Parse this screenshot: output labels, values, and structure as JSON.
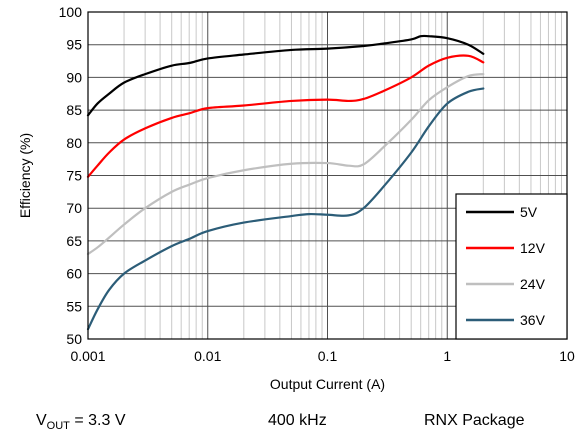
{
  "chart_data": {
    "type": "line",
    "xlabel": "Output Current (A)",
    "ylabel": "Efficiency (%)",
    "xscale": "log",
    "xlim": [
      0.001,
      10
    ],
    "ylim": [
      50,
      100
    ],
    "xticks": [
      0.001,
      0.01,
      0.1,
      1,
      10
    ],
    "xtick_labels": [
      "0.001",
      "0.01",
      "0.1",
      "1",
      "10"
    ],
    "yticks": [
      50,
      55,
      60,
      65,
      70,
      75,
      80,
      85,
      90,
      95,
      100
    ],
    "ytick_labels": [
      "50",
      "55",
      "60",
      "65",
      "70",
      "75",
      "80",
      "85",
      "90",
      "95",
      "100"
    ],
    "grid": true,
    "legend_position": "bottom-right",
    "series": [
      {
        "name": "5V",
        "color": "#000000",
        "x": [
          0.001,
          0.0012,
          0.0015,
          0.002,
          0.003,
          0.005,
          0.007,
          0.01,
          0.02,
          0.05,
          0.1,
          0.2,
          0.3,
          0.5,
          0.6,
          0.7,
          1.0,
          1.5,
          2.0
        ],
        "y": [
          84.2,
          86.0,
          87.5,
          89.2,
          90.5,
          91.8,
          92.2,
          92.9,
          93.5,
          94.2,
          94.4,
          94.8,
          95.2,
          95.8,
          96.3,
          96.3,
          96.0,
          95.0,
          93.6
        ]
      },
      {
        "name": "12V",
        "color": "#ff0000",
        "x": [
          0.001,
          0.0012,
          0.0015,
          0.002,
          0.003,
          0.005,
          0.007,
          0.01,
          0.02,
          0.05,
          0.1,
          0.15,
          0.2,
          0.3,
          0.5,
          0.7,
          1.0,
          1.5,
          2.0
        ],
        "y": [
          74.8,
          76.5,
          78.5,
          80.5,
          82.2,
          83.8,
          84.5,
          85.3,
          85.7,
          86.4,
          86.6,
          86.4,
          86.7,
          88.0,
          90.0,
          91.8,
          93.0,
          93.3,
          92.3
        ]
      },
      {
        "name": "24V",
        "color": "#bfbfbf",
        "x": [
          0.001,
          0.0012,
          0.0015,
          0.002,
          0.003,
          0.005,
          0.007,
          0.01,
          0.02,
          0.05,
          0.1,
          0.15,
          0.2,
          0.3,
          0.5,
          0.7,
          1.0,
          1.5,
          2.0
        ],
        "y": [
          63.0,
          64.0,
          65.5,
          67.5,
          70.0,
          72.5,
          73.6,
          74.6,
          75.8,
          76.8,
          76.9,
          76.5,
          76.7,
          79.5,
          83.5,
          86.5,
          88.5,
          90.2,
          90.5
        ]
      },
      {
        "name": "36V",
        "color": "#2c5d78",
        "x": [
          0.001,
          0.0012,
          0.0015,
          0.002,
          0.003,
          0.005,
          0.007,
          0.01,
          0.02,
          0.05,
          0.07,
          0.1,
          0.15,
          0.2,
          0.3,
          0.5,
          0.7,
          1.0,
          1.5,
          2.0
        ],
        "y": [
          51.5,
          54.5,
          57.5,
          60.0,
          62.0,
          64.2,
          65.3,
          66.5,
          67.8,
          68.8,
          69.1,
          69.0,
          68.9,
          70.0,
          73.5,
          78.5,
          82.5,
          86.0,
          87.8,
          88.3
        ]
      }
    ]
  },
  "footer": {
    "vout_prefix": "V",
    "vout_sub": "OUT",
    "vout_suffix": " = 3.3 V",
    "frequency": "400 kHz",
    "package": "RNX Package"
  }
}
